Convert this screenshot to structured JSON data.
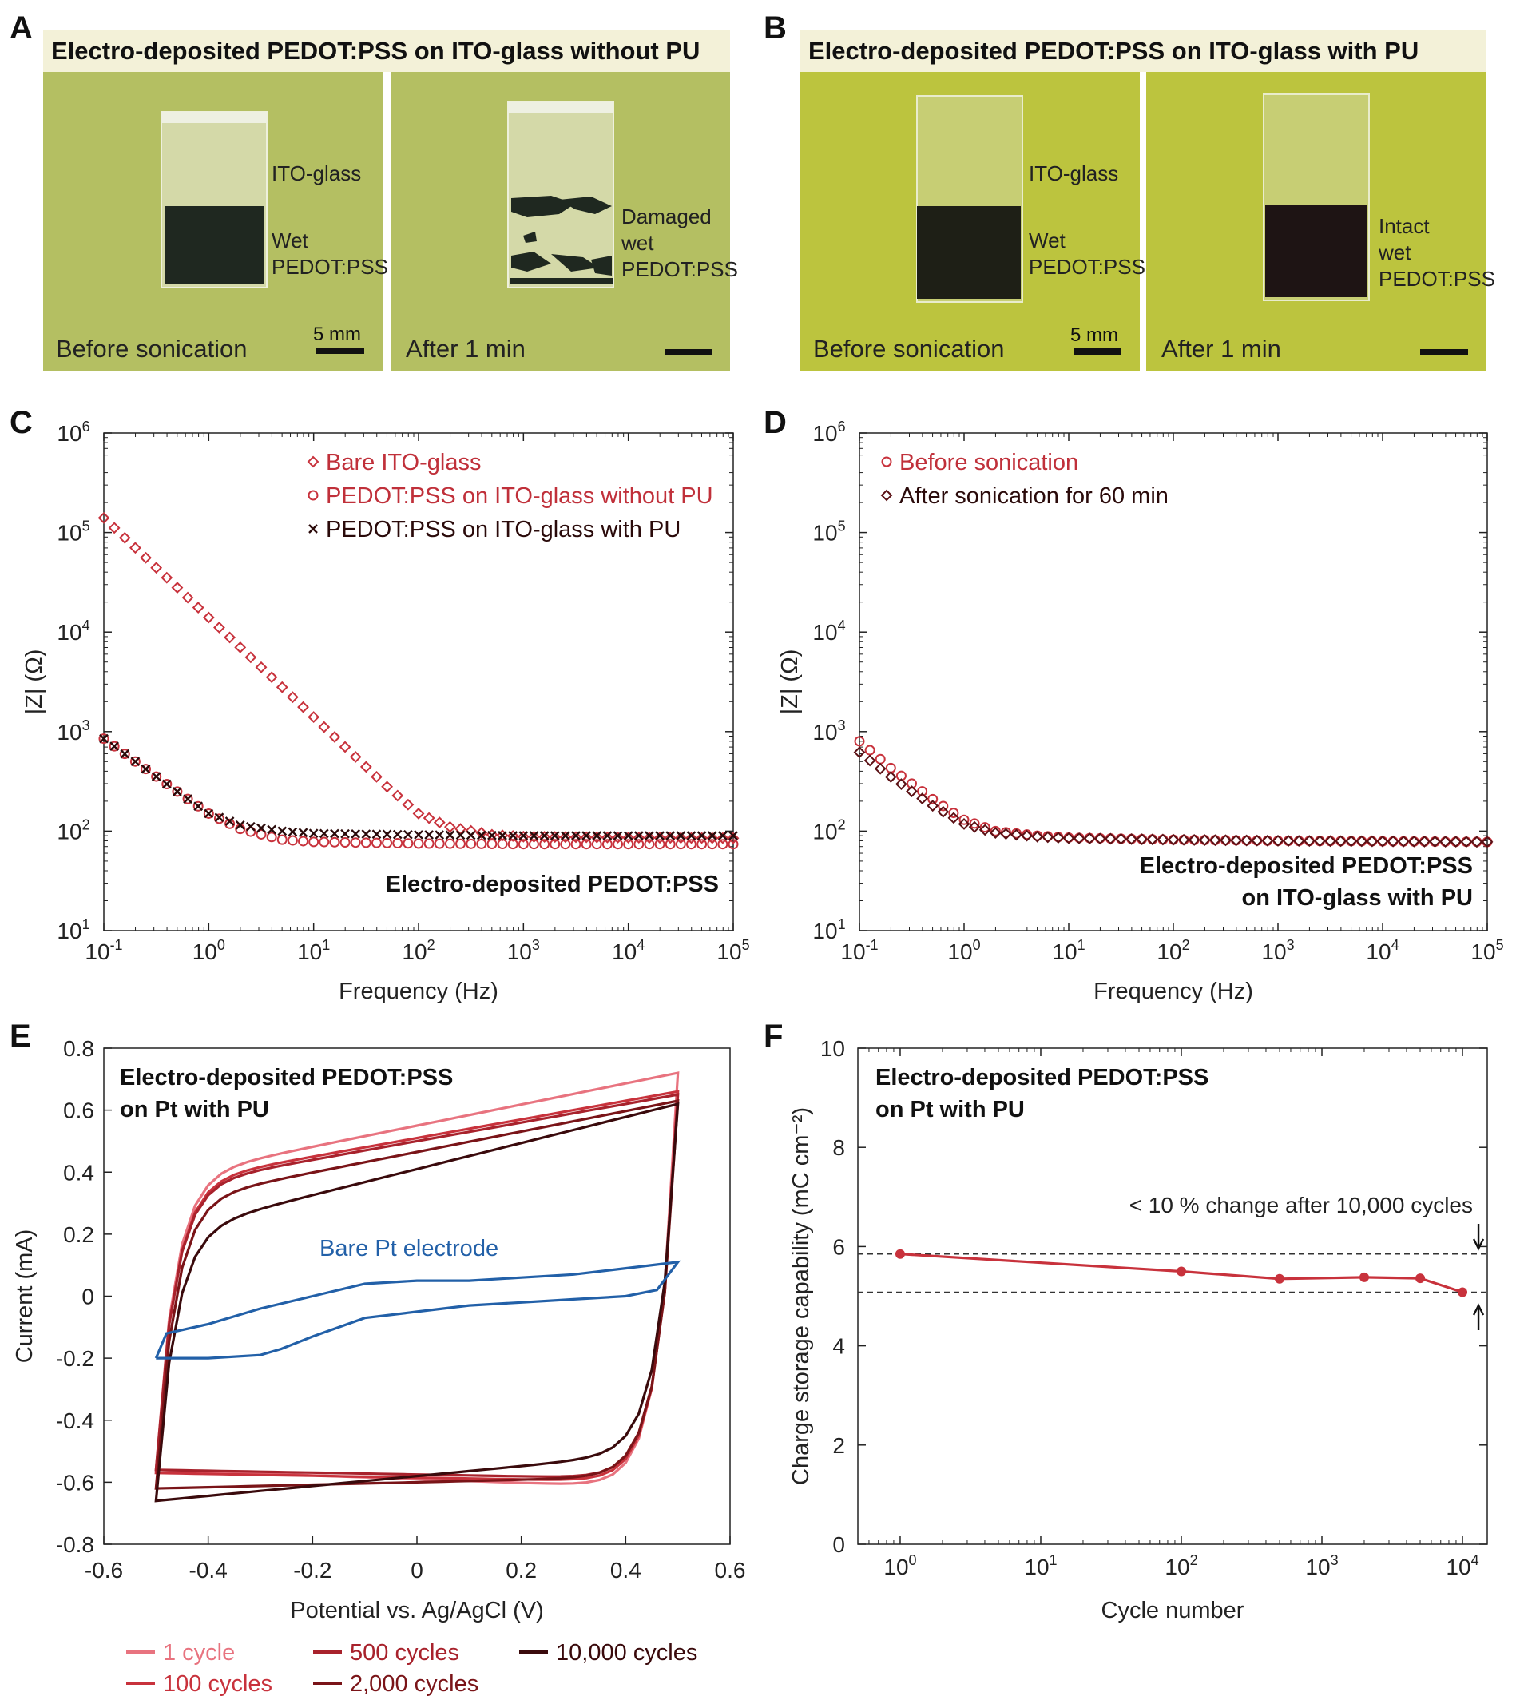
{
  "panel_letters": [
    "A",
    "B",
    "C",
    "D",
    "E",
    "F"
  ],
  "photos": [
    {
      "title": "Electro-deposited PEDOT:PSS on ITO-glass without PU",
      "background": "#b4bf62",
      "frames": [
        {
          "caption": "Before sonication",
          "scale_label": "5 mm",
          "labels": [
            "ITO-glass",
            "Wet",
            "PEDOT:PSS"
          ],
          "film": "intact"
        },
        {
          "caption": "After 1 min",
          "scale_label": "",
          "labels": [
            "Damaged",
            "wet",
            "PEDOT:PSS"
          ],
          "film": "damaged"
        }
      ]
    },
    {
      "title": "Electro-deposited PEDOT:PSS on ITO-glass with PU",
      "background": "#bcc43e",
      "frames": [
        {
          "caption": "Before sonication",
          "scale_label": "5 mm",
          "labels": [
            "ITO-glass",
            "Wet",
            "PEDOT:PSS"
          ],
          "film": "intact"
        },
        {
          "caption": "After 1 min",
          "scale_label": "",
          "labels": [
            "Intact",
            "wet",
            "PEDOT:PSS"
          ],
          "film": "intact"
        }
      ]
    }
  ],
  "chart_data": [
    {
      "panel": "C",
      "type": "scatter",
      "xscale": "log",
      "yscale": "log",
      "xlim": [
        0.1,
        100000
      ],
      "ylim": [
        10,
        1000000
      ],
      "xlabel": "Frequency (Hz)",
      "ylabel": "|Z| (Ω)",
      "annotation": "Electro-deposited PEDOT:PSS",
      "legend": "top-right",
      "series": [
        {
          "name": "Bare ITO-glass",
          "marker": "diamond",
          "color": "#c8323c",
          "points": [
            [
              0.1,
              140000
            ],
            [
              0.2,
              70000
            ],
            [
              0.5,
              28000
            ],
            [
              1,
              14000
            ],
            [
              2,
              7000
            ],
            [
              5,
              2800
            ],
            [
              10,
              1400
            ],
            [
              20,
              700
            ],
            [
              50,
              280
            ],
            [
              100,
              150
            ],
            [
              200,
              110
            ],
            [
              500,
              92
            ],
            [
              1000,
              88
            ],
            [
              10000,
              86
            ],
            [
              100000,
              85
            ]
          ]
        },
        {
          "name": "PEDOT:PSS on ITO-glass without PU",
          "marker": "circle",
          "color": "#c8323c",
          "points": [
            [
              0.1,
              850
            ],
            [
              0.2,
              500
            ],
            [
              0.5,
              250
            ],
            [
              1,
              150
            ],
            [
              2,
              105
            ],
            [
              5,
              82
            ],
            [
              10,
              78
            ],
            [
              100,
              75
            ],
            [
              1000,
              74
            ],
            [
              10000,
              74
            ],
            [
              100000,
              74
            ]
          ]
        },
        {
          "name": "PEDOT:PSS on ITO-glass with PU",
          "marker": "cross",
          "color": "#2a0a0a",
          "points": [
            [
              0.1,
              850
            ],
            [
              0.2,
              500
            ],
            [
              0.5,
              250
            ],
            [
              1,
              150
            ],
            [
              2,
              115
            ],
            [
              5,
              100
            ],
            [
              10,
              95
            ],
            [
              100,
              92
            ],
            [
              1000,
              90
            ],
            [
              10000,
              90
            ],
            [
              100000,
              90
            ]
          ]
        }
      ]
    },
    {
      "panel": "D",
      "type": "scatter",
      "xscale": "log",
      "yscale": "log",
      "xlim": [
        0.1,
        100000
      ],
      "ylim": [
        10,
        1000000
      ],
      "xlabel": "Frequency (Hz)",
      "ylabel": "|Z| (Ω)",
      "annotation": [
        "Electro-deposited PEDOT:PSS",
        "on ITO-glass with PU"
      ],
      "legend": "top-left",
      "series": [
        {
          "name": "Before sonication",
          "marker": "circle",
          "color": "#c8323c",
          "points": [
            [
              0.1,
              800
            ],
            [
              0.2,
              430
            ],
            [
              0.5,
              210
            ],
            [
              1,
              130
            ],
            [
              2,
              100
            ],
            [
              5,
              90
            ],
            [
              10,
              86
            ],
            [
              100,
              82
            ],
            [
              1000,
              80
            ],
            [
              10000,
              79
            ],
            [
              100000,
              78
            ]
          ]
        },
        {
          "name": "After sonication for 60 min",
          "marker": "diamond",
          "color": "#5a1014",
          "points": [
            [
              0.1,
              620
            ],
            [
              0.2,
              350
            ],
            [
              0.5,
              180
            ],
            [
              1,
              118
            ],
            [
              2,
              96
            ],
            [
              5,
              88
            ],
            [
              10,
              85
            ],
            [
              100,
              82
            ],
            [
              1000,
              80
            ],
            [
              10000,
              79
            ],
            [
              100000,
              78
            ]
          ]
        }
      ]
    },
    {
      "panel": "E",
      "type": "line",
      "xlim": [
        -0.6,
        0.6
      ],
      "ylim": [
        -0.8,
        0.8
      ],
      "xlabel": "Potential vs. Ag/AgCl (V)",
      "ylabel": "Current (mA)",
      "annotation": [
        "Electro-deposited PEDOT:PSS",
        "on Pt with PU"
      ],
      "bare_label": "Bare Pt electrode",
      "legend": "bottom",
      "series": [
        {
          "name": "1 cycle",
          "color": "#e8737f",
          "i_top": 0.72,
          "i_top_start": 0.38,
          "i_bot": -0.62,
          "i_bot_start": -0.56
        },
        {
          "name": "100 cycles",
          "color": "#c8323c",
          "i_top": 0.66,
          "i_top_start": 0.36,
          "i_bot": -0.6,
          "i_bot_start": -0.57
        },
        {
          "name": "500 cycles",
          "color": "#a8222c",
          "i_top": 0.65,
          "i_top_start": 0.35,
          "i_bot": -0.59,
          "i_bot_start": -0.56
        },
        {
          "name": "2,000 cycles",
          "color": "#7a1418",
          "i_top": 0.63,
          "i_top_start": 0.3,
          "i_bot": -0.58,
          "i_bot_start": -0.62
        },
        {
          "name": "10,000 cycles",
          "color": "#3a0a0c",
          "i_top": 0.62,
          "i_top_start": 0.2,
          "i_bot": -0.5,
          "i_bot_start": -0.66
        }
      ],
      "bare_pt": {
        "color": "#2260a8",
        "upper": [
          [
            -0.5,
            -0.2
          ],
          [
            -0.48,
            -0.12
          ],
          [
            -0.4,
            -0.09
          ],
          [
            -0.3,
            -0.04
          ],
          [
            -0.2,
            0.0
          ],
          [
            -0.1,
            0.04
          ],
          [
            0.0,
            0.05
          ],
          [
            0.1,
            0.05
          ],
          [
            0.2,
            0.06
          ],
          [
            0.3,
            0.07
          ],
          [
            0.4,
            0.09
          ],
          [
            0.5,
            0.11
          ]
        ],
        "lower": [
          [
            0.5,
            0.11
          ],
          [
            0.46,
            0.02
          ],
          [
            0.4,
            0.0
          ],
          [
            0.3,
            -0.01
          ],
          [
            0.2,
            -0.02
          ],
          [
            0.1,
            -0.03
          ],
          [
            0.0,
            -0.05
          ],
          [
            -0.1,
            -0.07
          ],
          [
            -0.2,
            -0.13
          ],
          [
            -0.26,
            -0.17
          ],
          [
            -0.3,
            -0.19
          ],
          [
            -0.4,
            -0.2
          ],
          [
            -0.5,
            -0.2
          ]
        ]
      }
    },
    {
      "panel": "F",
      "type": "line",
      "xscale": "log",
      "xlim": [
        0.5,
        15000
      ],
      "ylim": [
        0,
        10
      ],
      "xlabel": "Cycle number",
      "ylabel": "Charge storage capability (mC cm⁻²)",
      "annotation": [
        "Electro-deposited PEDOT:PSS",
        "on Pt with PU"
      ],
      "note": "< 10 % change after 10,000 cycles",
      "color": "#c8323c",
      "x": [
        1,
        100,
        500,
        2000,
        5000,
        10000
      ],
      "y": [
        5.85,
        5.5,
        5.35,
        5.38,
        5.36,
        5.08
      ],
      "reference_lines": [
        5.85,
        5.08
      ]
    }
  ]
}
